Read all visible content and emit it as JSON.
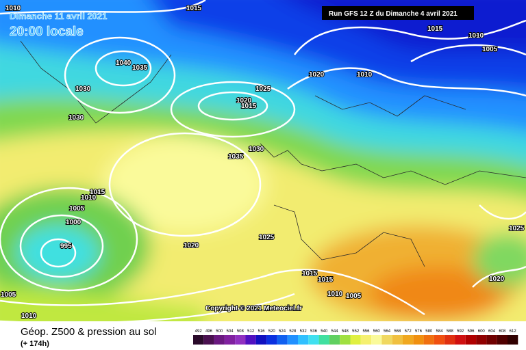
{
  "header": {
    "date": "Dimanche 11 avril 2021",
    "time": "20:00 locale",
    "run": "Run GFS 12 Z du Dimanche 4 avril 2021"
  },
  "isobar_labels": [
    "1010",
    "1015",
    "1015",
    "1010",
    "1005",
    "1040",
    "1035",
    "1030",
    "1020",
    "1010",
    "1025",
    "1020",
    "1015",
    "1030",
    "1030",
    "1035",
    "1015",
    "1010",
    "1005",
    "1000",
    "995",
    "1020",
    "1025",
    "1025",
    "1015",
    "1015",
    "1020",
    "1010",
    "1005",
    "1005",
    "1010"
  ],
  "copyright": "Copyright © 2021 Meteociel.fr",
  "footer": {
    "title": "Géop. Z500 & pression au sol",
    "lead": "(+ 174h)"
  },
  "scale": {
    "values": [
      492,
      496,
      500,
      504,
      508,
      512,
      516,
      520,
      524,
      528,
      532,
      536,
      540,
      544,
      548,
      552,
      556,
      560,
      564,
      568,
      572,
      576,
      580,
      584,
      588,
      592,
      596,
      600,
      604,
      608,
      612
    ],
    "colors": [
      "#2a0a2a",
      "#4a1050",
      "#6a1880",
      "#8020a0",
      "#9030c0",
      "#5010c0",
      "#1010c0",
      "#0a30e0",
      "#1060f0",
      "#2090ff",
      "#30c0ff",
      "#40e0f0",
      "#40e0a0",
      "#60d060",
      "#a0e040",
      "#e0f040",
      "#f5f070",
      "#fafa9a",
      "#f0d860",
      "#f0c040",
      "#f0a820",
      "#f09010",
      "#f07010",
      "#f05010",
      "#e03010",
      "#d01010",
      "#b00000",
      "#900000",
      "#700000",
      "#500000",
      "#300000"
    ]
  }
}
